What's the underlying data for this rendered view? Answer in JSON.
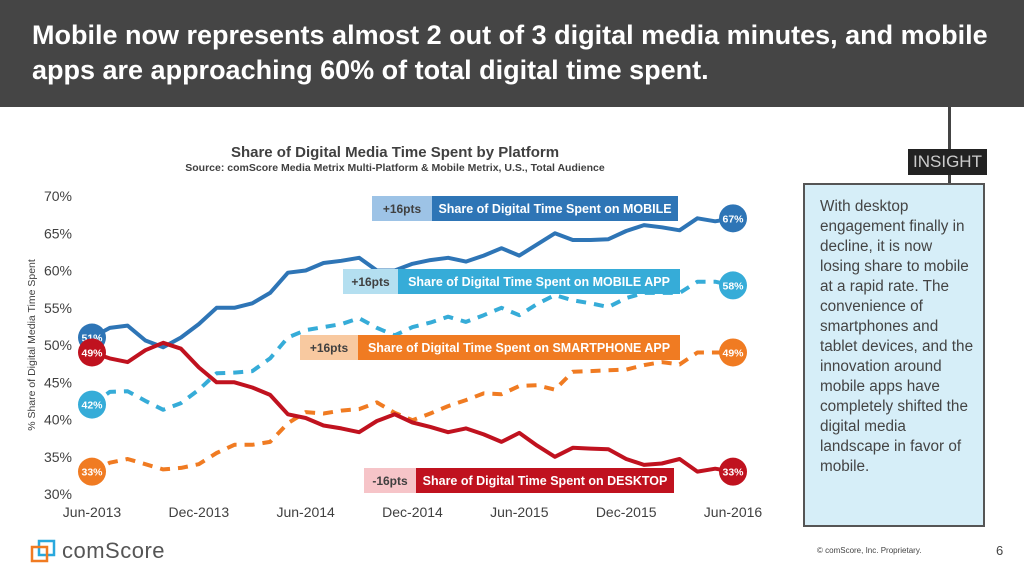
{
  "header": {
    "title": "Mobile now represents almost 2 out of 3 digital media minutes, and mobile apps are approaching 60% of total digital time spent."
  },
  "insight": {
    "tag": "INSIGHT",
    "text": "With desktop engagement finally in decline, it is now losing share to mobile at a rapid rate. The convenience of smartphones and tablet devices, and the innovation around mobile apps have completely shifted the digital media landscape in favor of mobile."
  },
  "footer": {
    "logo": "comScore",
    "copyright": "© comScore, Inc. Proprietary.",
    "page": "6"
  },
  "chart_data": {
    "type": "line",
    "title": "Share of Digital Media Time Spent by Platform",
    "subtitle": "Source: comScore Media Metrix Multi-Platform & Mobile Metrix, U.S., Total Audience",
    "ylabel": "% Share of Digital Media Time Spent",
    "xlabel": "",
    "ylim": [
      30,
      70
    ],
    "yticks": [
      "30%",
      "35%",
      "40%",
      "45%",
      "50%",
      "55%",
      "60%",
      "65%",
      "70%"
    ],
    "xrange": [
      "Jun-2013",
      "Jun-2016"
    ],
    "xticks": [
      "Jun-2013",
      "Dec-2013",
      "Jun-2014",
      "Dec-2014",
      "Jun-2015",
      "Dec-2015",
      "Jun-2016"
    ],
    "grid": false,
    "frequency": "monthly",
    "series": [
      {
        "name": "Share of Digital Time Spent on MOBILE",
        "change": "+16pts",
        "start_label": "51%",
        "end_label": "67%",
        "color": "#2e75b6",
        "light": "#9dc3e6",
        "dashed": false,
        "values": [
          51,
          52.3,
          52.6,
          50.6,
          49.7,
          51,
          52.8,
          55,
          55,
          55.6,
          57,
          59.7,
          60,
          61,
          61.3,
          61.7,
          60,
          60,
          60.9,
          61.4,
          61.7,
          61.2,
          62,
          63,
          62,
          63.5,
          65,
          64.1,
          64.1,
          64.2,
          65.3,
          66.1,
          65.8,
          65.4,
          67,
          66.6,
          67
        ]
      },
      {
        "name": "Share of Digital Time Spent on MOBILE APP",
        "change": "+16pts",
        "start_label": "42%",
        "end_label": "58%",
        "color": "#36acd8",
        "light": "#b4dff0",
        "dashed": true,
        "values": [
          42,
          43.7,
          43.8,
          42.5,
          41.3,
          42.2,
          44,
          46.2,
          46.3,
          46.5,
          48.2,
          51,
          52,
          52.4,
          52.8,
          53.6,
          52.3,
          51.3,
          52.4,
          53,
          53.8,
          53.1,
          54,
          55,
          54,
          55.5,
          56.7,
          56,
          55.6,
          55.1,
          56.3,
          57,
          57,
          57,
          58.5,
          58.5,
          58
        ]
      },
      {
        "name": "Share of Digital Time Spent on SMARTPHONE APP",
        "change": "+16pts",
        "start_label": "33%",
        "end_label": "49%",
        "color": "#f07b22",
        "light": "#f8c9a0",
        "dashed": true,
        "values": [
          33,
          34.2,
          34.7,
          34,
          33.3,
          33.5,
          34,
          35.5,
          36.6,
          36.6,
          37,
          39.5,
          41,
          40.8,
          41.2,
          41.4,
          42.3,
          40.9,
          39.9,
          40.8,
          41.8,
          42.6,
          43.5,
          43.4,
          44.5,
          44.6,
          44,
          46.4,
          46.5,
          46.6,
          46.7,
          47.3,
          47.7,
          47.4,
          49,
          49,
          49
        ]
      },
      {
        "name": "Share of Digital Time Spent on DESKTOP",
        "change": "-16pts",
        "start_label": "49%",
        "end_label": "33%",
        "color": "#c0121f",
        "light": "#f6c4c8",
        "dashed": false,
        "values": [
          49,
          48.2,
          47.7,
          49.3,
          50.3,
          49.5,
          47,
          45,
          45,
          44.3,
          43.3,
          40.7,
          40.2,
          39.2,
          38.8,
          38.3,
          39.8,
          40.7,
          39.6,
          39,
          38.3,
          38.8,
          38,
          37,
          38.2,
          36.5,
          35,
          36.2,
          36.1,
          36,
          34.7,
          33.9,
          34.1,
          34.7,
          33,
          33.4,
          33
        ]
      }
    ]
  }
}
